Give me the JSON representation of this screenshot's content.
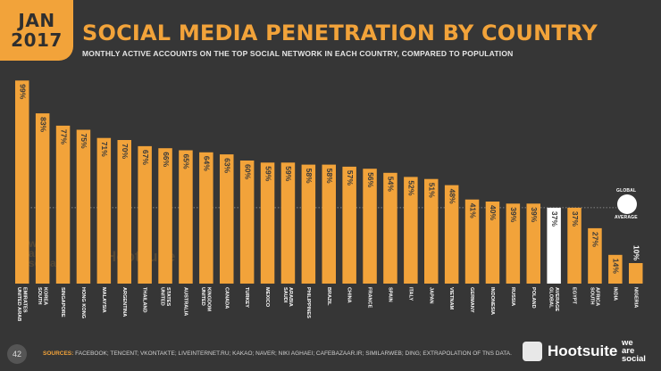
{
  "header": {
    "badge_month": "JAN",
    "badge_year": "2017",
    "title": "SOCIAL MEDIA PENETRATION BY COUNTRY",
    "subtitle": "MONTHLY ACTIVE ACCOUNTS ON THE TOP SOCIAL NETWORK IN EACH COUNTRY, COMPARED TO POPULATION"
  },
  "footer": {
    "page_number": "42",
    "sources_label": "SOURCES:",
    "sources_text": "FACEBOOK; TENCENT; VKONTAKTE; LIVEINTERNET.RU; KAKAO; NAVER; NIKI AGHAEI; CAFEBAZAAR.IR; SIMILARWEB; DING; EXTRAPOLATION OF TNS DATA.",
    "hootsuite": "Hootsuite",
    "we_are_social": [
      "we",
      "are",
      "social"
    ]
  },
  "watermark": {
    "left": [
      "we",
      "are",
      "social"
    ],
    "right": "Hootsuite"
  },
  "global_marker": {
    "top": "GLOBAL",
    "bottom": "AVERAGE"
  },
  "colors": {
    "background": "#363636",
    "bar": "#f2a33a",
    "highlight": "#ffffff",
    "label_light": "#ffffff",
    "label_dark": "#3a3a3a"
  },
  "chart_data": {
    "type": "bar",
    "categories": [
      [
        "UNITED ARAB",
        "EMIRATES"
      ],
      [
        "SOUTH",
        "KOREA"
      ],
      [
        "SINGAPORE"
      ],
      [
        "HONG KONG"
      ],
      [
        "MALAYSIA"
      ],
      [
        "ARGENTINA"
      ],
      [
        "THAILAND"
      ],
      [
        "UNITED",
        "STATES"
      ],
      [
        "AUSTRALIA"
      ],
      [
        "UNITED",
        "KINGDOM"
      ],
      [
        "CANADA"
      ],
      [
        "TURKEY"
      ],
      [
        "MEXICO"
      ],
      [
        "SAUDI",
        "ARABIA"
      ],
      [
        "PHILIPPINES"
      ],
      [
        "BRAZIL"
      ],
      [
        "CHINA"
      ],
      [
        "FRANCE"
      ],
      [
        "SPAIN"
      ],
      [
        "ITALY"
      ],
      [
        "JAPAN"
      ],
      [
        "VIETNAM"
      ],
      [
        "GERMANY"
      ],
      [
        "INDONESIA"
      ],
      [
        "RUSSIA"
      ],
      [
        "POLAND"
      ],
      [
        "GLOBAL",
        "AVERAGE"
      ],
      [
        "EGYPT"
      ],
      [
        "SOUTH",
        "AFRICA"
      ],
      [
        "INDIA"
      ],
      [
        "NIGERIA"
      ]
    ],
    "values": [
      99,
      83,
      77,
      75,
      71,
      70,
      67,
      66,
      65,
      64,
      63,
      60,
      59,
      59,
      58,
      58,
      57,
      56,
      54,
      52,
      51,
      48,
      41,
      40,
      39,
      39,
      37,
      37,
      27,
      14,
      10
    ],
    "value_labels": [
      "99%",
      "83%",
      "77%",
      "75%",
      "71%",
      "70%",
      "67%",
      "66%",
      "65%",
      "64%",
      "63%",
      "60%",
      "59%",
      "59%",
      "58%",
      "58%",
      "57%",
      "56%",
      "54%",
      "52%",
      "51%",
      "48%",
      "41%",
      "40%",
      "39%",
      "39%",
      "37%",
      "37%",
      "27%",
      "14%",
      "10%"
    ],
    "highlight_index": 26,
    "reference_line": 37,
    "ylim": [
      0,
      100
    ],
    "xlabel": "",
    "ylabel": ""
  }
}
